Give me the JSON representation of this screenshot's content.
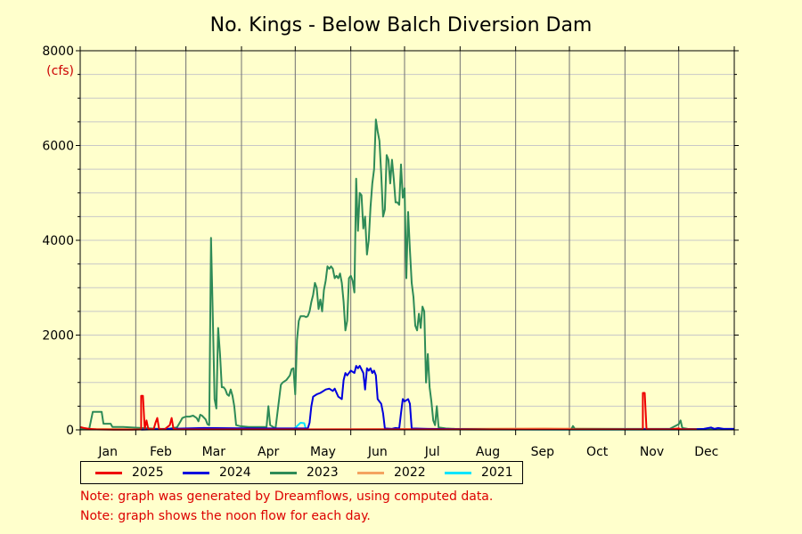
{
  "chart_data": {
    "type": "line",
    "title": "No. Kings - Below Balch Diversion Dam",
    "ylabel": "(cfs)",
    "xlabel": "",
    "ylim": [
      0,
      8000
    ],
    "xlim": [
      1,
      366
    ],
    "yticks": [
      0,
      2000,
      4000,
      6000,
      8000
    ],
    "months": [
      "Jan",
      "Feb",
      "Mar",
      "Apr",
      "May",
      "Jun",
      "Jul",
      "Aug",
      "Sep",
      "Oct",
      "Nov",
      "Dec"
    ],
    "grid": true,
    "legend_position": "bottom",
    "series": [
      {
        "name": "2025",
        "color": "#ee0000",
        "points": [
          [
            1,
            60
          ],
          [
            3,
            40
          ],
          [
            6,
            20
          ],
          [
            10,
            10
          ],
          [
            20,
            5
          ],
          [
            30,
            5
          ],
          [
            35,
            10
          ],
          [
            35,
            720
          ],
          [
            36,
            720
          ],
          [
            37,
            20
          ],
          [
            38,
            200
          ],
          [
            39,
            20
          ],
          [
            42,
            10
          ],
          [
            43,
            150
          ],
          [
            44,
            250
          ],
          [
            45,
            20
          ],
          [
            48,
            10
          ],
          [
            51,
            100
          ],
          [
            52,
            250
          ],
          [
            53,
            30
          ],
          [
            55,
            10
          ],
          [
            60,
            10
          ],
          [
            100,
            10
          ],
          [
            150,
            10
          ],
          [
            200,
            10
          ],
          [
            250,
            10
          ],
          [
            300,
            10
          ],
          [
            315,
            10
          ],
          [
            315,
            780
          ],
          [
            316,
            780
          ],
          [
            317,
            15
          ],
          [
            330,
            10
          ],
          [
            335,
            30
          ],
          [
            336,
            15
          ],
          [
            345,
            10
          ]
        ]
      },
      {
        "name": "2024",
        "color": "#0000dd",
        "points": [
          [
            35,
            5
          ],
          [
            60,
            30
          ],
          [
            70,
            40
          ],
          [
            100,
            30
          ],
          [
            125,
            30
          ],
          [
            128,
            30
          ],
          [
            129,
            150
          ],
          [
            130,
            500
          ],
          [
            131,
            700
          ],
          [
            133,
            750
          ],
          [
            135,
            780
          ],
          [
            138,
            850
          ],
          [
            140,
            870
          ],
          [
            142,
            820
          ],
          [
            143,
            870
          ],
          [
            145,
            700
          ],
          [
            147,
            650
          ],
          [
            148,
            1050
          ],
          [
            149,
            1200
          ],
          [
            150,
            1150
          ],
          [
            152,
            1250
          ],
          [
            154,
            1200
          ],
          [
            155,
            1350
          ],
          [
            156,
            1300
          ],
          [
            157,
            1350
          ],
          [
            159,
            1200
          ],
          [
            160,
            850
          ],
          [
            161,
            1300
          ],
          [
            162,
            1250
          ],
          [
            163,
            1300
          ],
          [
            164,
            1200
          ],
          [
            165,
            1250
          ],
          [
            166,
            1150
          ],
          [
            167,
            650
          ],
          [
            168,
            600
          ],
          [
            169,
            550
          ],
          [
            170,
            350
          ],
          [
            171,
            30
          ],
          [
            175,
            20
          ],
          [
            177,
            40
          ],
          [
            179,
            30
          ],
          [
            180,
            350
          ],
          [
            181,
            650
          ],
          [
            182,
            600
          ],
          [
            184,
            650
          ],
          [
            185,
            550
          ],
          [
            186,
            30
          ],
          [
            195,
            20
          ],
          [
            230,
            10
          ],
          [
            270,
            10
          ],
          [
            330,
            15
          ],
          [
            345,
            15
          ],
          [
            349,
            20
          ],
          [
            353,
            50
          ],
          [
            355,
            20
          ],
          [
            357,
            40
          ],
          [
            360,
            20
          ],
          [
            366,
            20
          ]
        ]
      },
      {
        "name": "2023",
        "color": "#2e8b57",
        "points": [
          [
            1,
            10
          ],
          [
            3,
            20
          ],
          [
            6,
            20
          ],
          [
            8,
            380
          ],
          [
            10,
            380
          ],
          [
            13,
            380
          ],
          [
            14,
            130
          ],
          [
            16,
            130
          ],
          [
            18,
            130
          ],
          [
            19,
            60
          ],
          [
            25,
            60
          ],
          [
            35,
            40
          ],
          [
            45,
            20
          ],
          [
            50,
            20
          ],
          [
            55,
            50
          ],
          [
            57,
            180
          ],
          [
            58,
            250
          ],
          [
            60,
            280
          ],
          [
            62,
            280
          ],
          [
            64,
            300
          ],
          [
            66,
            250
          ],
          [
            67,
            180
          ],
          [
            68,
            320
          ],
          [
            69,
            300
          ],
          [
            70,
            260
          ],
          [
            71,
            220
          ],
          [
            72,
            120
          ],
          [
            73,
            100
          ],
          [
            74,
            4050
          ],
          [
            75,
            2400
          ],
          [
            76,
            650
          ],
          [
            77,
            450
          ],
          [
            78,
            2150
          ],
          [
            79,
            1600
          ],
          [
            80,
            900
          ],
          [
            81,
            900
          ],
          [
            82,
            850
          ],
          [
            83,
            750
          ],
          [
            84,
            720
          ],
          [
            85,
            850
          ],
          [
            86,
            720
          ],
          [
            87,
            500
          ],
          [
            88,
            100
          ],
          [
            90,
            80
          ],
          [
            95,
            60
          ],
          [
            100,
            60
          ],
          [
            105,
            60
          ],
          [
            106,
            500
          ],
          [
            107,
            100
          ],
          [
            110,
            30
          ],
          [
            113,
            950
          ],
          [
            114,
            1000
          ],
          [
            116,
            1050
          ],
          [
            118,
            1150
          ],
          [
            119,
            1280
          ],
          [
            120,
            1300
          ],
          [
            121,
            750
          ],
          [
            122,
            1900
          ],
          [
            123,
            2300
          ],
          [
            124,
            2400
          ],
          [
            126,
            2400
          ],
          [
            127,
            2380
          ],
          [
            128,
            2400
          ],
          [
            129,
            2500
          ],
          [
            130,
            2700
          ],
          [
            131,
            2850
          ],
          [
            132,
            3100
          ],
          [
            133,
            3000
          ],
          [
            134,
            2550
          ],
          [
            135,
            2750
          ],
          [
            136,
            2500
          ],
          [
            137,
            2950
          ],
          [
            138,
            3150
          ],
          [
            139,
            3450
          ],
          [
            140,
            3400
          ],
          [
            141,
            3450
          ],
          [
            142,
            3400
          ],
          [
            143,
            3200
          ],
          [
            144,
            3250
          ],
          [
            145,
            3200
          ],
          [
            146,
            3300
          ],
          [
            147,
            3100
          ],
          [
            148,
            2700
          ],
          [
            149,
            2100
          ],
          [
            150,
            2300
          ],
          [
            151,
            3200
          ],
          [
            152,
            3250
          ],
          [
            153,
            3150
          ],
          [
            154,
            2900
          ],
          [
            155,
            5300
          ],
          [
            156,
            4200
          ],
          [
            157,
            5000
          ],
          [
            158,
            4950
          ],
          [
            159,
            4250
          ],
          [
            160,
            4500
          ],
          [
            161,
            3700
          ],
          [
            162,
            4000
          ],
          [
            163,
            4700
          ],
          [
            164,
            5200
          ],
          [
            165,
            5500
          ],
          [
            166,
            6550
          ],
          [
            167,
            6300
          ],
          [
            168,
            6100
          ],
          [
            169,
            5400
          ],
          [
            170,
            4500
          ],
          [
            171,
            4650
          ],
          [
            172,
            5800
          ],
          [
            173,
            5700
          ],
          [
            174,
            5200
          ],
          [
            175,
            5700
          ],
          [
            176,
            5300
          ],
          [
            177,
            4800
          ],
          [
            178,
            4800
          ],
          [
            179,
            4750
          ],
          [
            180,
            5600
          ],
          [
            181,
            4900
          ],
          [
            182,
            5100
          ],
          [
            183,
            3200
          ],
          [
            184,
            4600
          ],
          [
            185,
            3800
          ],
          [
            186,
            3100
          ],
          [
            187,
            2800
          ],
          [
            188,
            2200
          ],
          [
            189,
            2100
          ],
          [
            190,
            2450
          ],
          [
            191,
            2150
          ],
          [
            192,
            2600
          ],
          [
            193,
            2500
          ],
          [
            194,
            1000
          ],
          [
            195,
            1600
          ],
          [
            196,
            900
          ],
          [
            197,
            600
          ],
          [
            198,
            200
          ],
          [
            199,
            100
          ],
          [
            200,
            500
          ],
          [
            201,
            50
          ],
          [
            205,
            30
          ],
          [
            210,
            20
          ],
          [
            230,
            15
          ],
          [
            250,
            10
          ],
          [
            275,
            10
          ],
          [
            276,
            80
          ],
          [
            277,
            20
          ],
          [
            300,
            20
          ],
          [
            330,
            20
          ],
          [
            335,
            120
          ],
          [
            336,
            200
          ],
          [
            337,
            40
          ],
          [
            340,
            20
          ],
          [
            350,
            15
          ],
          [
            366,
            15
          ]
        ]
      },
      {
        "name": "2022",
        "color": "#f4a460",
        "points": [
          [
            1,
            20
          ],
          [
            60,
            15
          ],
          [
            120,
            10
          ],
          [
            200,
            20
          ],
          [
            260,
            30
          ],
          [
            320,
            15
          ],
          [
            366,
            20
          ]
        ]
      },
      {
        "name": "2021",
        "color": "#00e5ff",
        "points": [
          [
            1,
            10
          ],
          [
            60,
            10
          ],
          [
            120,
            10
          ],
          [
            124,
            150
          ],
          [
            126,
            140
          ],
          [
            127,
            10
          ],
          [
            200,
            10
          ],
          [
            270,
            5
          ],
          [
            366,
            10
          ]
        ]
      }
    ]
  },
  "notes": [
    "Note: graph was generated by Dreamflows, using computed data.",
    "Note: graph shows the noon flow for each day."
  ]
}
